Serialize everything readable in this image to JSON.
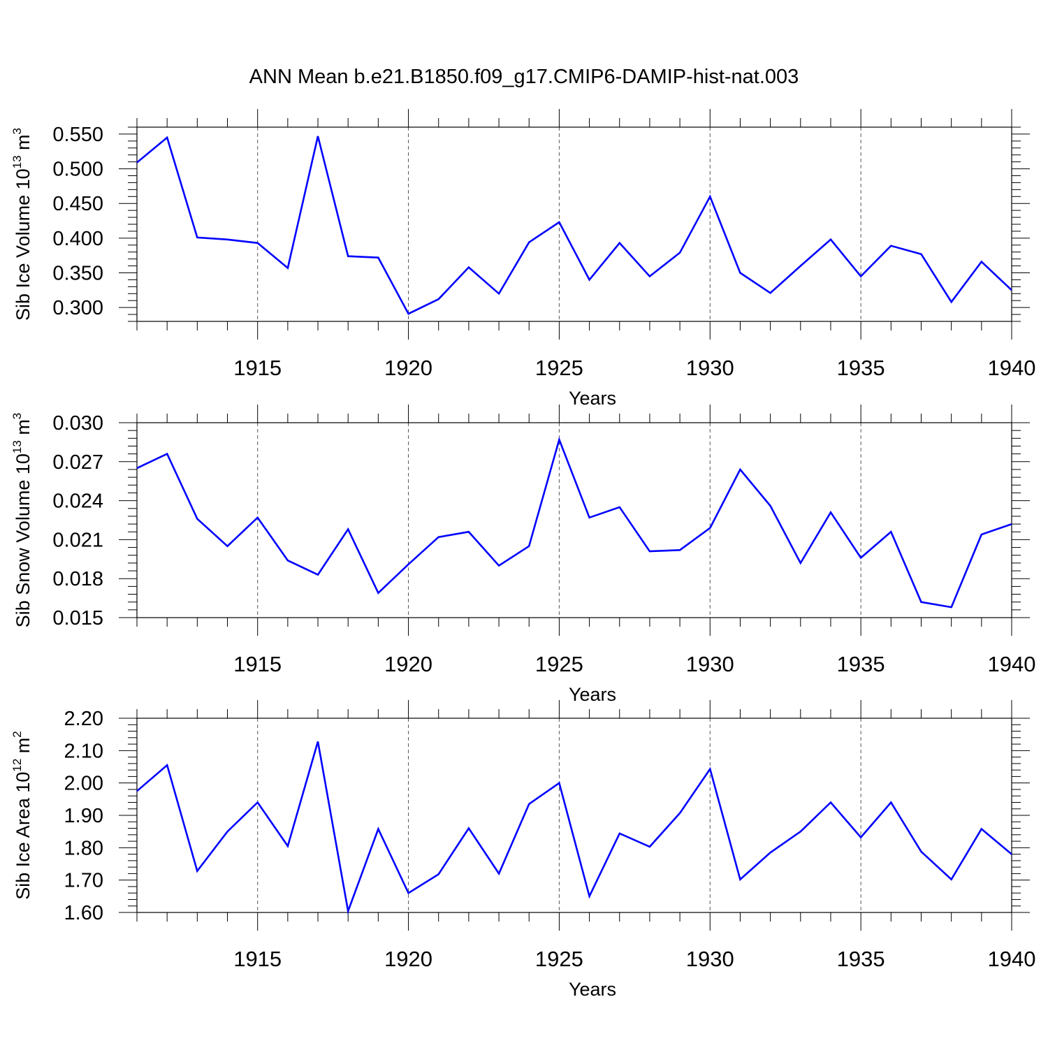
{
  "chart_data": {
    "title": "ANN Mean b.e21.B1850.f09_g17.CMIP6-DAMIP-hist-nat.003",
    "line_color": "#0000ff",
    "panels": [
      {
        "type": "line",
        "ylabel": "Sib Ice Volume 10",
        "ylabel_exp": "13",
        "ylabel_unit": "m",
        "ylabel_unit_exp": "3",
        "xlabel": "Years",
        "xlim": [
          1911,
          1940
        ],
        "ylim": [
          0.28,
          0.56
        ],
        "yticks": [
          0.3,
          0.35,
          0.4,
          0.45,
          0.5,
          0.55
        ],
        "ytick_labels": [
          "0.300",
          "0.350",
          "0.400",
          "0.450",
          "0.500",
          "0.550"
        ],
        "xticks": [
          1915,
          1920,
          1925,
          1930,
          1935,
          1940
        ],
        "xtick_labels": [
          "1915",
          "1920",
          "1925",
          "1930",
          "1935",
          "1940"
        ],
        "grid_x": [
          1915,
          1920,
          1925,
          1930,
          1935
        ],
        "x": [
          1911,
          1912,
          1913,
          1914,
          1915,
          1916,
          1917,
          1918,
          1919,
          1920,
          1921,
          1922,
          1923,
          1924,
          1925,
          1926,
          1927,
          1928,
          1929,
          1930,
          1931,
          1932,
          1933,
          1934,
          1935,
          1936,
          1937,
          1938,
          1939,
          1940
        ],
        "values": [
          0.509,
          0.545,
          0.401,
          0.398,
          0.393,
          0.357,
          0.547,
          0.374,
          0.372,
          0.291,
          0.312,
          0.358,
          0.32,
          0.394,
          0.423,
          0.34,
          0.393,
          0.345,
          0.379,
          0.46,
          0.35,
          0.321,
          0.36,
          0.398,
          0.345,
          0.389,
          0.377,
          0.308,
          0.366,
          0.325
        ]
      },
      {
        "type": "line",
        "ylabel": "Sib Snow Volume 10",
        "ylabel_exp": "13",
        "ylabel_unit": "m",
        "ylabel_unit_exp": "3",
        "xlabel": "Years",
        "xlim": [
          1911,
          1940
        ],
        "ylim": [
          0.015,
          0.03
        ],
        "yticks": [
          0.015,
          0.018,
          0.021,
          0.024,
          0.027,
          0.03
        ],
        "ytick_labels": [
          "0.015",
          "0.018",
          "0.021",
          "0.024",
          "0.027",
          "0.030"
        ],
        "xticks": [
          1915,
          1920,
          1925,
          1930,
          1935,
          1940
        ],
        "xtick_labels": [
          "1915",
          "1920",
          "1925",
          "1930",
          "1935",
          "1940"
        ],
        "grid_x": [
          1915,
          1920,
          1925,
          1930,
          1935
        ],
        "x": [
          1911,
          1912,
          1913,
          1914,
          1915,
          1916,
          1917,
          1918,
          1919,
          1920,
          1921,
          1922,
          1923,
          1924,
          1925,
          1926,
          1927,
          1928,
          1929,
          1930,
          1931,
          1932,
          1933,
          1934,
          1935,
          1936,
          1937,
          1938,
          1939,
          1940
        ],
        "values": [
          0.0265,
          0.0276,
          0.0226,
          0.0205,
          0.0227,
          0.0194,
          0.0183,
          0.0218,
          0.0169,
          0.0191,
          0.0212,
          0.0216,
          0.019,
          0.0205,
          0.0287,
          0.0227,
          0.0235,
          0.0201,
          0.0202,
          0.0219,
          0.0264,
          0.0236,
          0.0192,
          0.0231,
          0.0196,
          0.0216,
          0.0162,
          0.0158,
          0.0214,
          0.0222
        ]
      },
      {
        "type": "line",
        "ylabel": "Sib Ice Area 10",
        "ylabel_exp": "12",
        "ylabel_unit": "m",
        "ylabel_unit_exp": "2",
        "xlabel": "Years",
        "xlim": [
          1911,
          1940
        ],
        "ylim": [
          1.6,
          2.2
        ],
        "yticks": [
          1.6,
          1.7,
          1.8,
          1.9,
          2.0,
          2.1,
          2.2
        ],
        "ytick_labels": [
          "1.60",
          "1.70",
          "1.80",
          "1.90",
          "2.00",
          "2.10",
          "2.20"
        ],
        "xticks": [
          1915,
          1920,
          1925,
          1930,
          1935,
          1940
        ],
        "xtick_labels": [
          "1915",
          "1920",
          "1925",
          "1930",
          "1935",
          "1940"
        ],
        "grid_x": [
          1915,
          1920,
          1925,
          1930,
          1935
        ],
        "x": [
          1911,
          1912,
          1913,
          1914,
          1915,
          1916,
          1917,
          1918,
          1919,
          1920,
          1921,
          1922,
          1923,
          1924,
          1925,
          1926,
          1927,
          1928,
          1929,
          1930,
          1931,
          1932,
          1933,
          1934,
          1935,
          1936,
          1937,
          1938,
          1939,
          1940
        ],
        "values": [
          1.975,
          2.055,
          1.728,
          1.85,
          1.94,
          1.805,
          2.128,
          1.604,
          1.858,
          1.66,
          1.718,
          1.86,
          1.72,
          1.935,
          2.0,
          1.65,
          1.844,
          1.803,
          1.907,
          2.043,
          1.702,
          1.785,
          1.85,
          1.94,
          1.832,
          1.94,
          1.788,
          1.702,
          1.858,
          1.78
        ]
      }
    ]
  }
}
